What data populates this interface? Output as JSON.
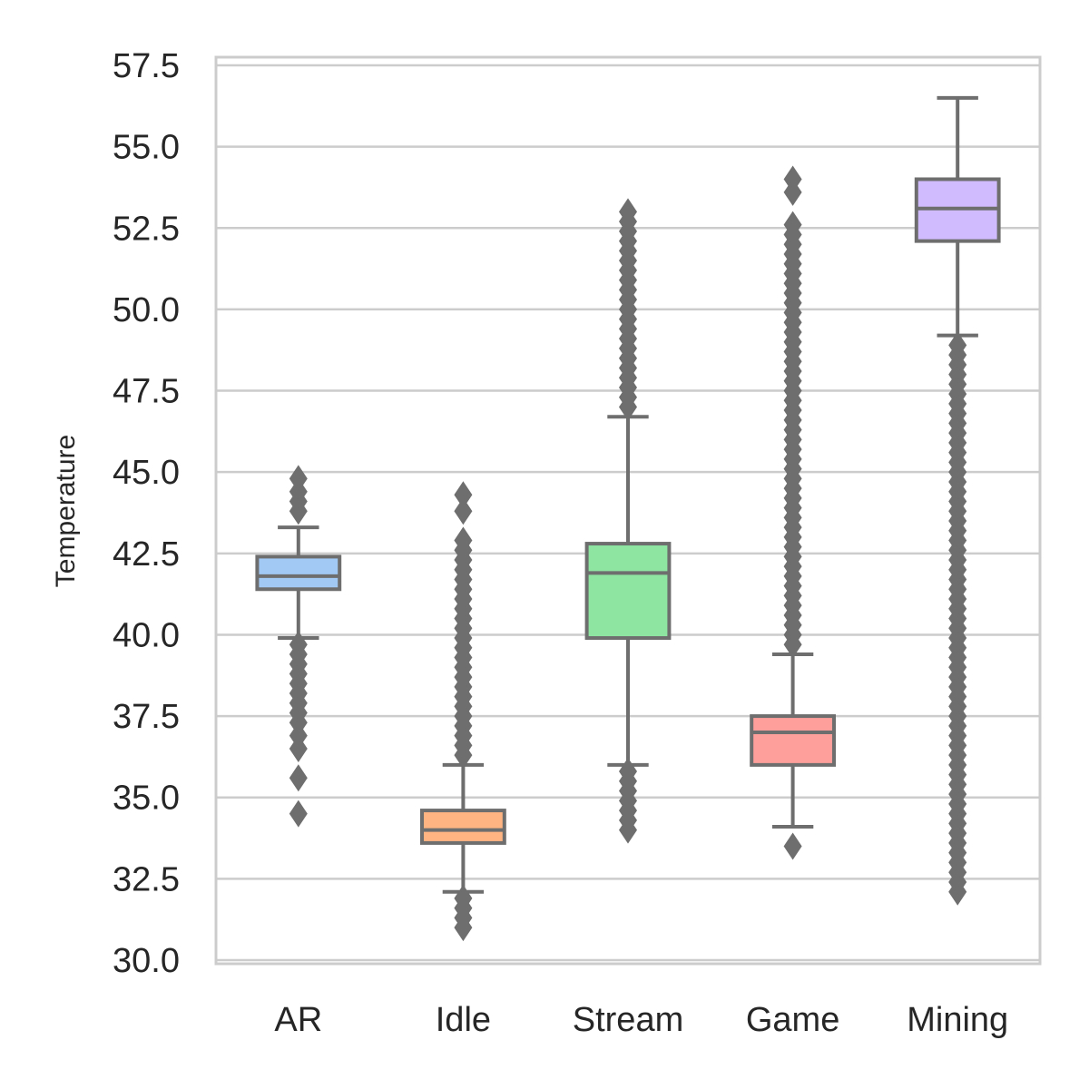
{
  "chart_data": {
    "type": "box",
    "title": "",
    "xlabel": "",
    "ylabel": "Temperature",
    "ylim": [
      30.0,
      57.5
    ],
    "grid": "horizontal",
    "y_ticks": [
      "30.0",
      "32.5",
      "35.0",
      "37.5",
      "40.0",
      "42.5",
      "45.0",
      "47.5",
      "50.0",
      "52.5",
      "55.0",
      "57.5"
    ],
    "categories": [
      "AR",
      "Idle",
      "Stream",
      "Game",
      "Mining"
    ],
    "colors": {
      "boxes": [
        "#a1c9f4",
        "#ffb482",
        "#8de5a1",
        "#ff9f9b",
        "#d0bbff"
      ],
      "lines": "#6e6e6e",
      "grid": "#cccccc",
      "spine": "#cccccc"
    },
    "boxes": [
      {
        "category": "AR",
        "whisker_low": 39.9,
        "q1": 41.4,
        "median": 41.8,
        "q3": 42.4,
        "whisker_high": 43.3,
        "outliers": [
          34.5,
          35.6,
          36.5,
          36.9,
          37.3,
          37.6,
          37.9,
          38.2,
          38.5,
          38.8,
          39.1,
          39.4,
          39.7,
          43.8,
          44.1,
          44.4,
          44.8
        ]
      },
      {
        "category": "Idle",
        "whisker_low": 32.1,
        "q1": 33.6,
        "median": 34.0,
        "q3": 34.6,
        "whisker_high": 36.0,
        "outliers": [
          31.0,
          31.3,
          31.6,
          31.9,
          36.3,
          36.6,
          36.9,
          37.2,
          37.5,
          37.8,
          38.1,
          38.4,
          38.7,
          39.0,
          39.3,
          39.6,
          39.9,
          40.2,
          40.5,
          40.8,
          41.1,
          41.4,
          41.7,
          42.0,
          42.3,
          42.6,
          42.9,
          43.8,
          44.3
        ]
      },
      {
        "category": "Stream",
        "whisker_low": 36.0,
        "q1": 39.9,
        "median": 41.9,
        "q3": 42.8,
        "whisker_high": 46.7,
        "outliers": [
          34.0,
          34.3,
          34.6,
          34.9,
          35.2,
          35.5,
          35.8,
          47.0,
          47.3,
          47.6,
          47.9,
          48.2,
          48.5,
          48.8,
          49.1,
          49.4,
          49.7,
          50.0,
          50.3,
          50.6,
          50.9,
          51.2,
          51.5,
          51.8,
          52.1,
          52.4,
          52.7,
          53.0
        ]
      },
      {
        "category": "Game",
        "whisker_low": 34.1,
        "q1": 36.0,
        "median": 37.0,
        "q3": 37.5,
        "whisker_high": 39.4,
        "outliers": [
          33.5,
          39.7,
          40.0,
          40.3,
          40.6,
          40.9,
          41.2,
          41.5,
          41.8,
          42.1,
          42.4,
          42.7,
          43.0,
          43.3,
          43.6,
          43.9,
          44.2,
          44.5,
          44.8,
          45.1,
          45.4,
          45.7,
          46.0,
          46.3,
          46.6,
          46.9,
          47.2,
          47.5,
          47.8,
          48.1,
          48.4,
          48.7,
          49.0,
          49.3,
          49.6,
          49.9,
          50.2,
          50.5,
          50.8,
          51.1,
          51.4,
          51.7,
          52.0,
          52.3,
          52.6,
          53.6,
          54.0
        ]
      },
      {
        "category": "Mining",
        "whisker_low": 49.2,
        "q1": 52.1,
        "median": 53.1,
        "q3": 54.0,
        "whisker_high": 56.5,
        "outliers": [
          32.1,
          32.4,
          32.7,
          33.0,
          33.3,
          33.6,
          33.9,
          34.2,
          34.5,
          34.8,
          35.1,
          35.4,
          35.7,
          36.0,
          36.3,
          36.6,
          36.9,
          37.2,
          37.5,
          37.8,
          38.1,
          38.4,
          38.7,
          39.0,
          39.3,
          39.6,
          39.9,
          40.2,
          40.5,
          40.8,
          41.1,
          41.4,
          41.7,
          42.0,
          42.3,
          42.6,
          42.9,
          43.2,
          43.5,
          43.8,
          44.1,
          44.4,
          44.7,
          45.0,
          45.3,
          45.6,
          45.9,
          46.2,
          46.5,
          46.8,
          47.1,
          47.4,
          47.7,
          48.0,
          48.3,
          48.6,
          48.9
        ]
      }
    ]
  }
}
